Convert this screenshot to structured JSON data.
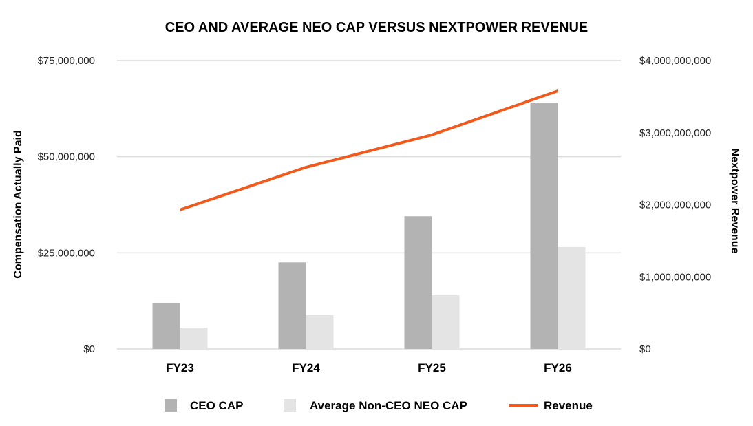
{
  "chart_data": {
    "type": "bar",
    "title": "CEO AND AVERAGE NEO CAP VERSUS NEXTPOWER REVENUE",
    "categories": [
      "FY23",
      "FY24",
      "FY25",
      "FY26"
    ],
    "series": [
      {
        "name": "CEO CAP",
        "type": "bar",
        "axis": "left",
        "color": "#b3b3b3",
        "values": [
          12000000,
          22500000,
          34500000,
          64000000
        ]
      },
      {
        "name": "Average Non-CEO NEO CAP",
        "type": "bar",
        "axis": "left",
        "color": "#e4e4e4",
        "values": [
          5500000,
          8800000,
          14000000,
          26500000
        ]
      },
      {
        "name": "Revenue",
        "type": "line",
        "axis": "right",
        "color": "#f25a1d",
        "values": [
          1930000000,
          2520000000,
          2970000000,
          3580000000
        ]
      }
    ],
    "y_left": {
      "label": "Compensation Actually Paid",
      "ylim": [
        0,
        75000000
      ],
      "ticks": [
        0,
        25000000,
        50000000,
        75000000
      ],
      "tick_labels": [
        "$0",
        "$25,000,000",
        "$50,000,000",
        "$75,000,000"
      ]
    },
    "y_right": {
      "label": "Nextpower Revenue",
      "ylim": [
        0,
        4000000000
      ],
      "ticks": [
        0,
        1000000000,
        2000000000,
        3000000000,
        4000000000
      ],
      "tick_labels": [
        "$0",
        "$1,000,000,000",
        "$2,000,000,000",
        "$3,000,000,000",
        "$4,000,000,000"
      ]
    },
    "grid": true,
    "legend": {
      "position": "bottom",
      "items": [
        "CEO CAP",
        "Average Non-CEO NEO CAP",
        "Revenue"
      ]
    }
  }
}
